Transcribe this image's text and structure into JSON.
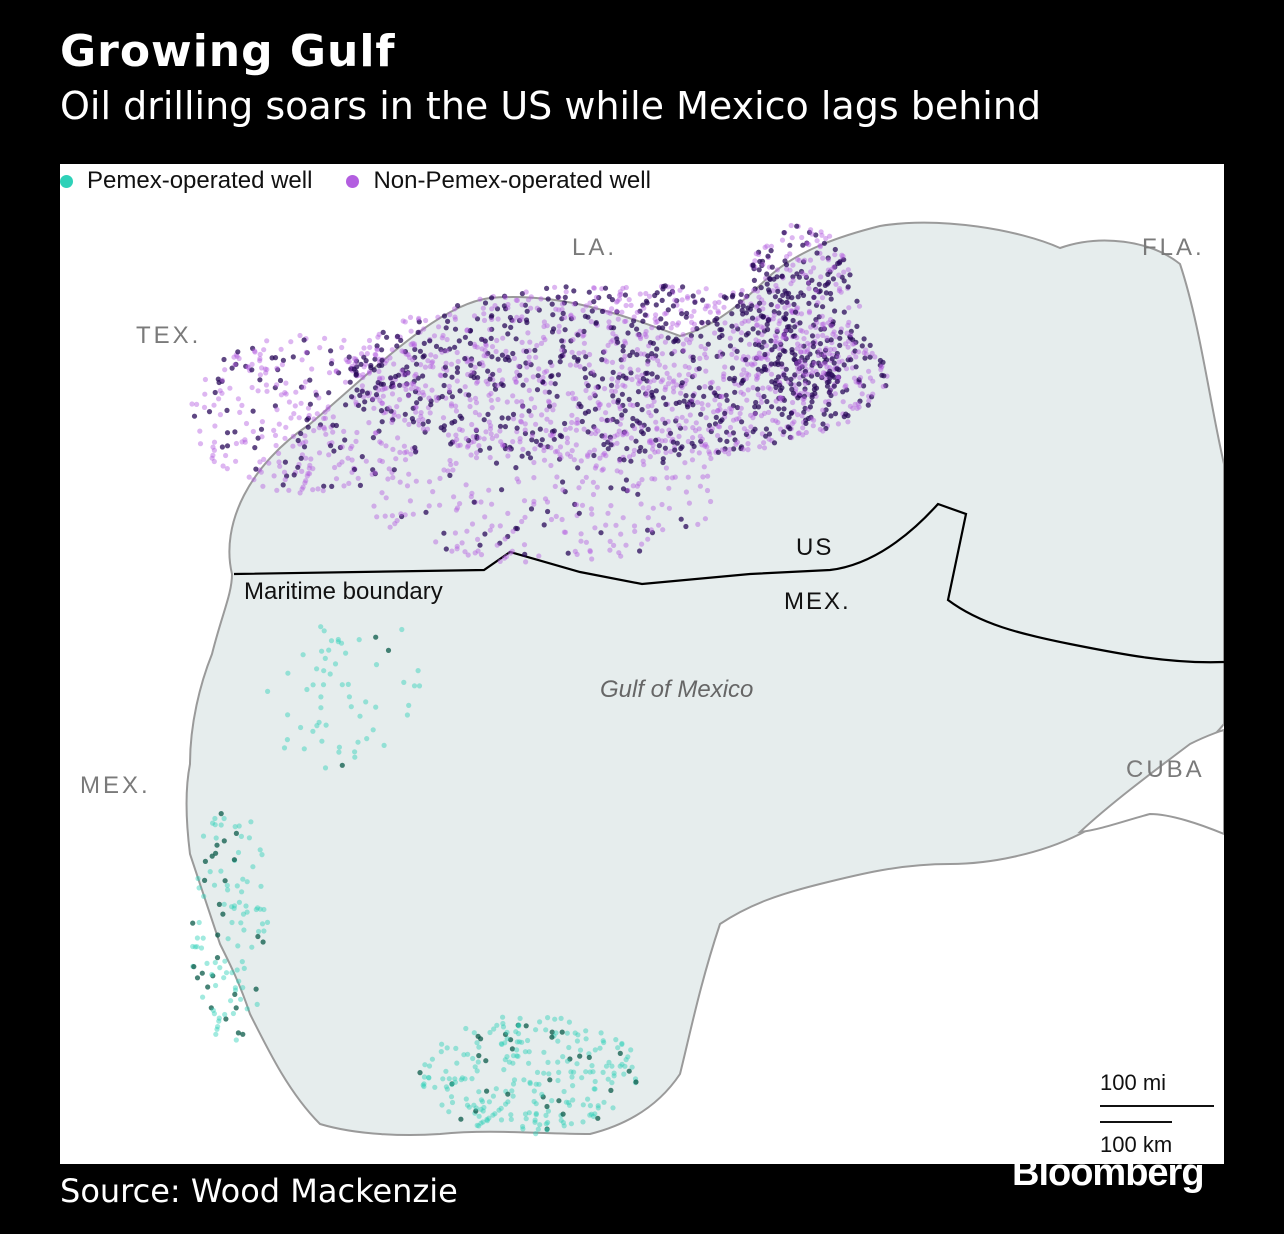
{
  "title": "Growing Gulf",
  "subtitle": "Oil drilling soars in the US while Mexico lags behind",
  "legend": [
    {
      "label": "Pemex-operated well",
      "color": "#2ed1b8"
    },
    {
      "label": "Non-Pemex-operated well",
      "color": "#b35ee0"
    }
  ],
  "places": {
    "la": "LA.",
    "fla": "FLA.",
    "tex": "TEX.",
    "mex_land": "MEX.",
    "cuba": "CUBA",
    "gulf": "Gulf of Mexico",
    "us": "US",
    "mex_boundary": "MEX.",
    "maritime_boundary": "Maritime boundary"
  },
  "scale": {
    "mi": "100 mi",
    "km": "100 km"
  },
  "source": "Source: Wood Mackenzie",
  "brand": "Bloomberg",
  "colors": {
    "water": "#e6eded",
    "land": "#ffffff",
    "coast": "#9a9a9a",
    "pemex": "#2ed1b8",
    "pemex_dark": "#0a5a48",
    "non_pemex": "#b35ee0",
    "non_pemex_dark": "#2a0a5a"
  }
}
